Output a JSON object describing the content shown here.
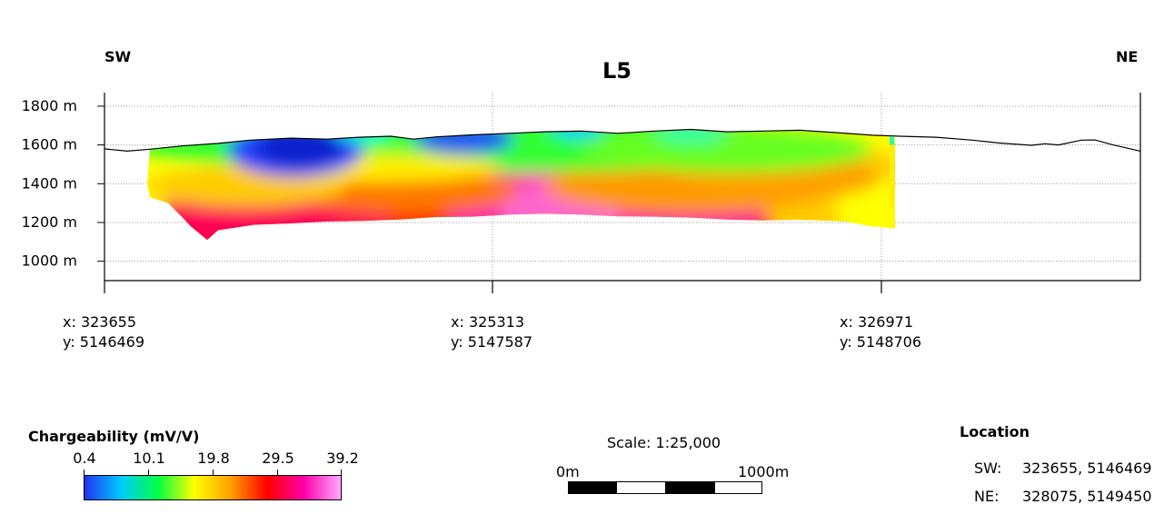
{
  "title": "L5",
  "directions": {
    "left": "SW",
    "right": "NE"
  },
  "chart_data": {
    "type": "heatmap",
    "title": "L5",
    "xlabel": "",
    "ylabel": "",
    "y_tick_labels": [
      "1800 m",
      "1600 m",
      "1400 m",
      "1200 m",
      "1000 m"
    ],
    "y_ticks": [
      1800,
      1600,
      1400,
      1200,
      1000
    ],
    "ylim": [
      900,
      1870
    ],
    "x_positions": [
      {
        "x": "x: 323655",
        "y": "y: 5146469"
      },
      {
        "x": "x: 325313",
        "y": "y: 5147587"
      },
      {
        "x": "x: 326971",
        "y": "y: 5148706"
      }
    ],
    "grid": true,
    "colorbar": {
      "label": "Chargeability (mV/V)",
      "ticks": [
        "0.4",
        "10.1",
        "19.8",
        "29.5",
        "39.2"
      ],
      "colors": [
        "#2233ee",
        "#00ccff",
        "#00ff44",
        "#ffff00",
        "#ffa000",
        "#ff0000",
        "#ff00aa",
        "#ffaaff"
      ]
    }
  },
  "scale": {
    "text": "Scale: 1:25,000",
    "zero": "0m",
    "end": "1000m"
  },
  "location": {
    "title": "Location",
    "rows": [
      {
        "label": "SW:",
        "value": "323655, 5146469"
      },
      {
        "label": "NE:",
        "value": "328075, 5149450"
      }
    ]
  }
}
